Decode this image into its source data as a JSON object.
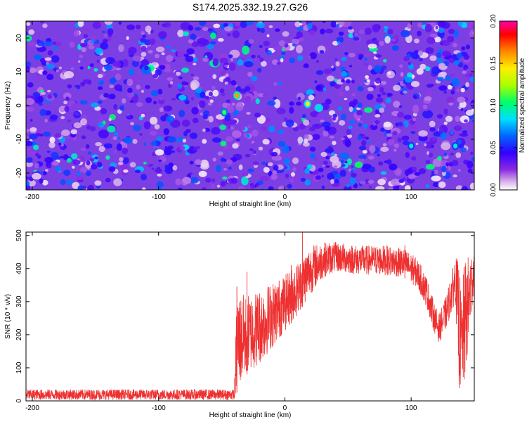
{
  "title": "S174.2025.332.19.27.G26",
  "chart_data": [
    {
      "type": "heatmap",
      "title": "S174.2025.332.19.27.G26",
      "xlabel": "Height of straight line (km)",
      "ylabel": "Frequency (Hz)",
      "xlim": [
        -205,
        150
      ],
      "ylim": [
        -25,
        25
      ],
      "xticks": [
        -200,
        -100,
        0,
        100
      ],
      "yticks": [
        -20,
        -10,
        0,
        10,
        20
      ],
      "colorbar": {
        "label": "Normalized spectral amplitude",
        "range": [
          0.0,
          0.2
        ],
        "ticks": [
          "0.00",
          "0.05",
          "0.10",
          "0.15",
          "0.20"
        ],
        "colormap": [
          "#ffffff",
          "#d8b0ea",
          "#8a2be2",
          "#3300ff",
          "#0066ff",
          "#00e0ff",
          "#00ff66",
          "#aaff00",
          "#ffee00",
          "#ff8800",
          "#ff0000",
          "#ff00aa"
        ]
      },
      "background_amplitude": 0.03,
      "features": [
        {
          "x": -48,
          "y": -2,
          "amplitude": 0.11,
          "label": ""
        },
        {
          "x": -38,
          "y": 3,
          "amplitude": 0.16,
          "label": ""
        },
        {
          "x": 18,
          "y": 0.5,
          "amplitude": 0.14,
          "label": ""
        },
        {
          "x": 100,
          "y": -12,
          "amplitude": 0.09,
          "label": ""
        },
        {
          "x": 135,
          "y": -12,
          "amplitude": 0.09,
          "label": ""
        }
      ]
    },
    {
      "type": "line",
      "xlabel": "Height of straight line (km)",
      "ylabel": "SNR (10 * v/v)",
      "xlim": [
        -205,
        150
      ],
      "ylim": [
        0,
        510
      ],
      "xticks": [
        -200,
        -100,
        0,
        100
      ],
      "yticks": [
        0,
        100,
        200,
        300,
        400,
        500
      ],
      "color": "#ee3030",
      "series": [
        {
          "name": "SNR",
          "envelope_x": [
            -205,
            -40,
            -38,
            -30,
            -20,
            -10,
            0,
            10,
            20,
            30,
            40,
            60,
            80,
            95,
            105,
            112,
            118,
            122,
            128,
            135,
            138,
            140,
            142,
            150
          ],
          "envelope_low": [
            3,
            3,
            25,
            80,
            110,
            160,
            210,
            260,
            320,
            370,
            390,
            380,
            380,
            370,
            340,
            285,
            210,
            175,
            220,
            300,
            30,
            30,
            30,
            330
          ],
          "envelope_high": [
            35,
            35,
            330,
            320,
            340,
            360,
            380,
            420,
            470,
            480,
            480,
            470,
            470,
            460,
            430,
            380,
            300,
            260,
            320,
            440,
            420,
            300,
            420,
            470
          ],
          "spikes": [
            {
              "x": -38,
              "y": 345
            },
            {
              "x": -30,
              "y": 390
            },
            {
              "x": 5,
              "y": 410
            },
            {
              "x": 14,
              "y": 515
            },
            {
              "x": 95,
              "y": 470
            }
          ]
        }
      ]
    }
  ]
}
